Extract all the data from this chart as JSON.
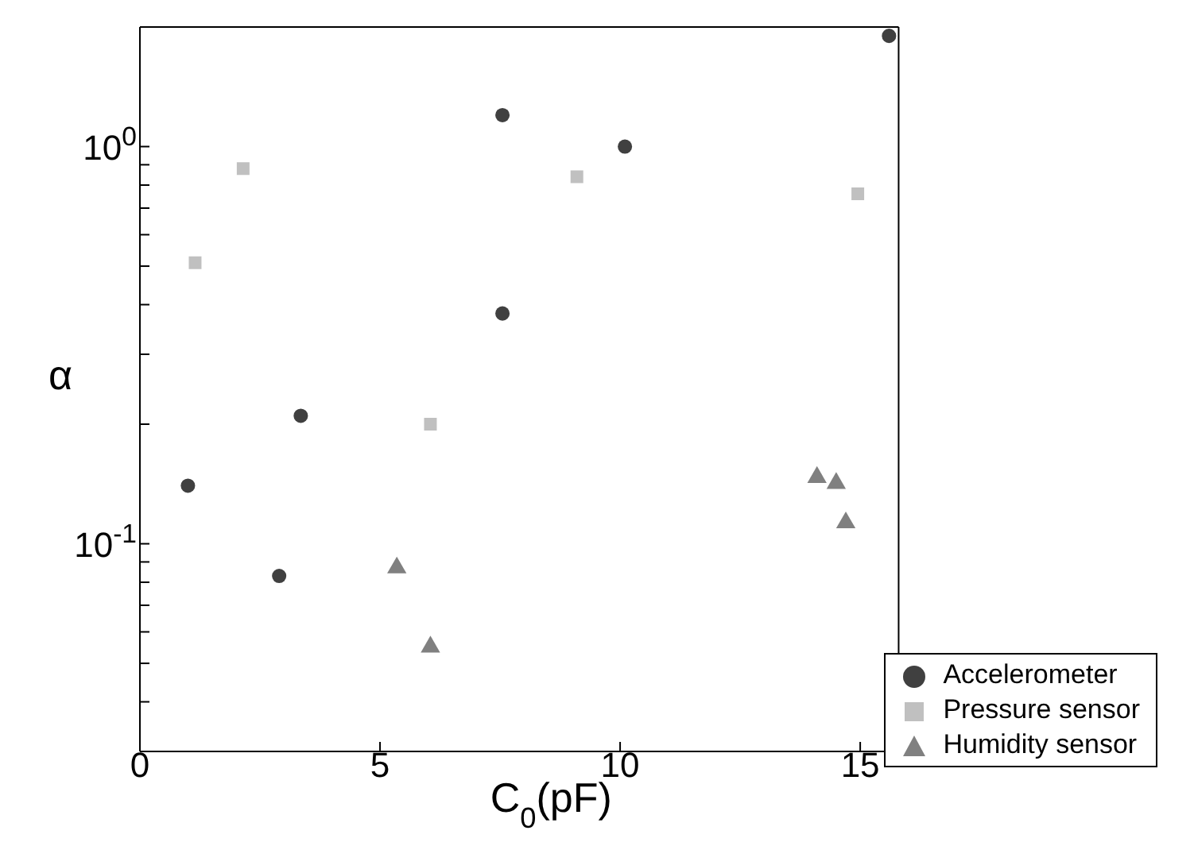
{
  "chart_data": {
    "type": "scatter",
    "xlabel": "C$_{0}$(pF)",
    "ylabel": "α",
    "log": "y",
    "xlim": [
      0,
      15.8
    ],
    "xticks": [
      0,
      5,
      10,
      15
    ],
    "ylim": [
      0.03,
      2
    ],
    "yticks": [
      {
        "value": 0.04,
        "label": null
      },
      {
        "value": 0.05,
        "label": null
      },
      {
        "value": 0.06,
        "label": null
      },
      {
        "value": 0.07,
        "label": null
      },
      {
        "value": 0.08,
        "label": null
      },
      {
        "value": 0.09,
        "label": null
      },
      {
        "value": 0.1,
        "label": "10$^{-1}$"
      },
      {
        "value": 0.2,
        "label": null
      },
      {
        "value": 0.3,
        "label": null
      },
      {
        "value": 0.4,
        "label": null
      },
      {
        "value": 0.5,
        "label": null
      },
      {
        "value": 0.6,
        "label": null
      },
      {
        "value": 0.7,
        "label": null
      },
      {
        "value": 0.8,
        "label": null
      },
      {
        "value": 0.9,
        "label": null
      },
      {
        "value": 1,
        "label": "10$^{0}$"
      }
    ],
    "grid": false,
    "legend": "bottom right",
    "series": [
      {
        "name": "Accelerometer",
        "color": "#404040",
        "marker": "circle",
        "x": [
          1.0,
          2.9,
          3.35,
          7.55,
          7.55,
          10.1,
          15.6
        ],
        "values": [
          0.14,
          0.083,
          0.21,
          1.2,
          0.38,
          1.0,
          1.9
        ]
      },
      {
        "name": "Pressure sensor",
        "color": "#c0c0c0",
        "marker": "square",
        "x": [
          1.15,
          2.15,
          6.05,
          9.1,
          14.95
        ],
        "values": [
          0.51,
          0.88,
          0.2,
          0.84,
          0.76
        ]
      },
      {
        "name": "Humidity sensor",
        "color": "#808080",
        "marker": "triangle",
        "x": [
          5.35,
          6.05,
          14.1,
          14.5,
          14.7
        ],
        "values": [
          0.087,
          0.055,
          0.147,
          0.142,
          0.113
        ]
      }
    ]
  }
}
